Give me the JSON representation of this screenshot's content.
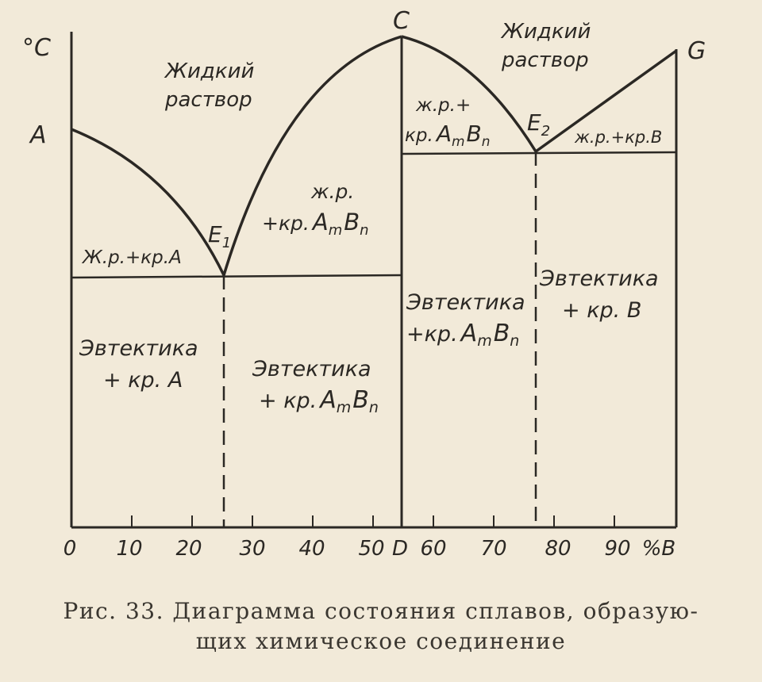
{
  "axis": {
    "y_unit": "°C",
    "x_ticks": [
      "0",
      "10",
      "20",
      "30",
      "40",
      "50",
      "D",
      "60",
      "70",
      "80",
      "90",
      "%B"
    ]
  },
  "points": {
    "A": "A",
    "C": "C",
    "G": "G",
    "E1_base": "E",
    "E1_sub": "1",
    "E2_base": "E",
    "E2_sub": "2"
  },
  "regions": {
    "liquid_left": [
      "Жидкий",
      "раствор"
    ],
    "liquid_right": [
      "Жидкий",
      "раствор"
    ],
    "liq_plus_A": "Ж.р.+кр.A",
    "liq_plus_AmBn_left": [
      "ж.р.",
      "+кр.",
      "A",
      "m",
      "B",
      "n"
    ],
    "liq_plus_AmBn_right": [
      "ж.р.+",
      "кр.",
      "A",
      "m",
      "B",
      "n"
    ],
    "liq_plus_B": "ж.р.+кр.B",
    "eut_plus_A": [
      "Эвтектика",
      "+ кр. A"
    ],
    "eut_plus_AmBn_left": [
      "Эвтектика",
      "+ кр.",
      "A",
      "m",
      "B",
      "n"
    ],
    "eut_plus_AmBn_right": [
      "Эвтектика",
      "+кр.",
      "A",
      "m",
      "B",
      "n"
    ],
    "eut_plus_B": [
      "Эвтектика",
      "+ кр. B"
    ]
  },
  "caption": {
    "line1": "Рис. 33. Диаграмма состояния  сплавов, образую-",
    "line2": "щих химическое  соединение"
  }
}
